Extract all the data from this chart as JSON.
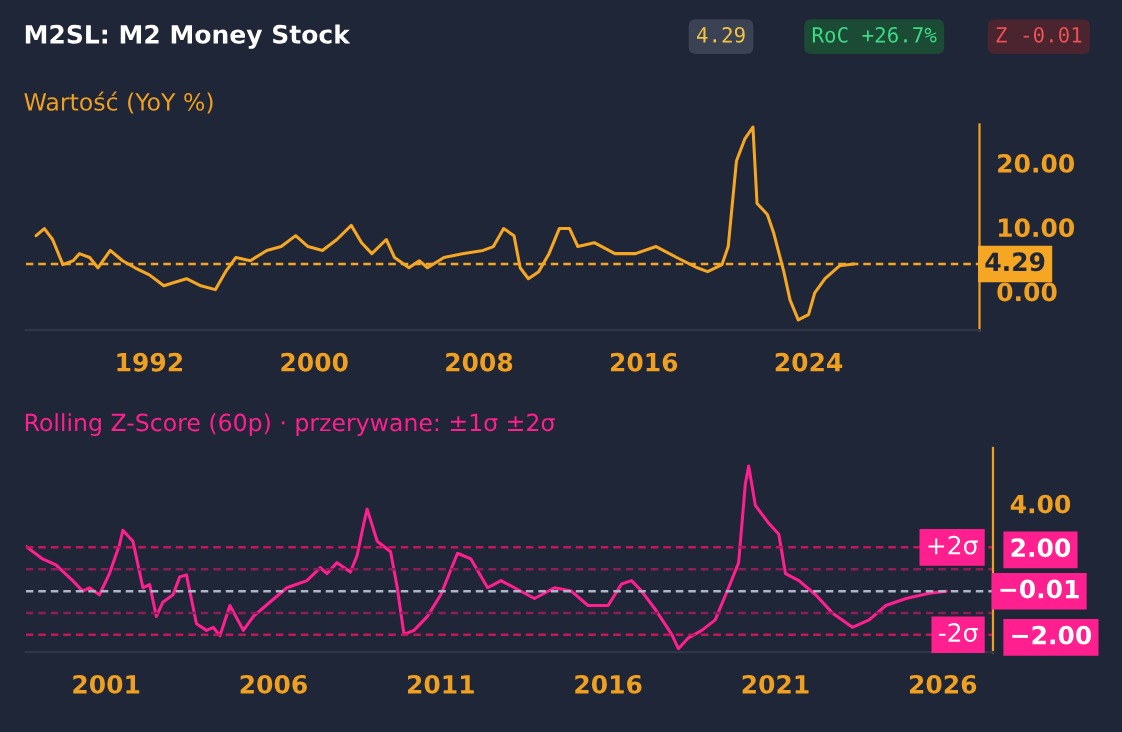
{
  "chart_data": [
    {
      "type": "line",
      "title": "M2SL: M2 Money Stock",
      "subtitle": "Wartość (YoY %)",
      "annotations": [
        "4.29",
        "RoC +26.7%",
        "Z -0.01"
      ],
      "x": [
        1986.5,
        1986.9,
        1987.3,
        1987.8,
        1988.3,
        1988.6,
        1989.1,
        1989.5,
        1990.1,
        1990.7,
        1991.3,
        1992.0,
        1992.7,
        1993.2,
        1993.8,
        1994.5,
        1995.2,
        1995.7,
        1996.2,
        1996.9,
        1997.7,
        1998.4,
        1999.1,
        1999.7,
        2000.4,
        2001.1,
        2001.8,
        2002.3,
        2002.8,
        2003.5,
        2003.9,
        2004.6,
        2005.1,
        2005.5,
        2006.3,
        2007.2,
        2008.2,
        2008.7,
        2009.2,
        2009.7,
        2010.0,
        2010.4,
        2010.9,
        2011.4,
        2011.9,
        2012.4,
        2012.8,
        2013.6,
        2014.6,
        2015.6,
        2016.6,
        2017.6,
        2018.6,
        2019.1,
        2019.8,
        2020.1,
        2020.5,
        2020.9,
        2021.3,
        2021.5,
        2022.0,
        2022.3,
        2022.8,
        2023.1,
        2023.5,
        2024.0,
        2024.3,
        2024.8,
        2025.5,
        2026.2
      ],
      "series": [
        {
          "color": "#f5a623",
          "values": [
            8.7,
            9.8,
            8.1,
            4.2,
            4.8,
            5.9,
            5.3,
            3.7,
            6.4,
            4.8,
            3.7,
            2.6,
            0.9,
            1.4,
            2.0,
            0.9,
            0.3,
            3.1,
            5.3,
            4.8,
            6.4,
            7.0,
            8.7,
            7.0,
            6.4,
            8.1,
            10.3,
            7.6,
            5.9,
            8.1,
            5.3,
            3.7,
            4.8,
            3.7,
            5.3,
            5.9,
            6.4,
            7.0,
            9.8,
            8.7,
            3.7,
            2.0,
            3.1,
            5.9,
            9.8,
            9.8,
            7.0,
            7.6,
            5.9,
            5.9,
            7.0,
            5.3,
            3.7,
            3.1,
            4.2,
            7.0,
            20.3,
            23.7,
            25.6,
            13.7,
            12.0,
            9.2,
            3.1,
            -1.3,
            -4.4,
            -3.6,
            -0.2,
            2.0,
            4.0,
            4.29
          ]
        }
      ],
      "xlim": [
        1986,
        2032.3
      ],
      "xticks": [
        1992,
        2000,
        2008,
        2016,
        2024
      ],
      "ylim": [
        -6,
        26
      ],
      "yticks": [
        {
          "value": 0,
          "label": "0.00"
        },
        {
          "value": 10,
          "label": "10.00"
        },
        {
          "value": 20,
          "label": "20.00"
        }
      ],
      "ref_lines": [
        {
          "axis": "y",
          "value": 4.29,
          "label": "4.29",
          "color": "#f5a623",
          "line_style": "dashed"
        }
      ],
      "grid": false,
      "legend": false
    },
    {
      "type": "line",
      "title": "Rolling Z-Score (60p) · przerywane: ±1σ ±2σ",
      "x": [
        1998.6,
        1999.1,
        1999.5,
        2000.0,
        2000.3,
        2000.5,
        2000.8,
        2001.1,
        2001.4,
        2001.5,
        2001.8,
        2002.1,
        2002.3,
        2002.5,
        2002.7,
        2003.0,
        2003.2,
        2003.4,
        2003.7,
        2004.0,
        2004.2,
        2004.4,
        2004.7,
        2005.1,
        2005.4,
        2005.9,
        2006.4,
        2007.0,
        2007.4,
        2007.6,
        2007.9,
        2008.3,
        2008.5,
        2008.7,
        2008.8,
        2009.1,
        2009.5,
        2009.7,
        2009.9,
        2010.2,
        2010.6,
        2011.0,
        2011.5,
        2011.9,
        2012.4,
        2012.8,
        2013.2,
        2013.8,
        2014.4,
        2014.9,
        2015.4,
        2016.0,
        2016.4,
        2016.7,
        2017.0,
        2017.4,
        2017.9,
        2018.1,
        2018.4,
        2018.8,
        2019.2,
        2019.6,
        2019.9,
        2020.1,
        2020.2,
        2020.4,
        2020.8,
        2021.1,
        2021.3,
        2021.7,
        2022.2,
        2022.7,
        2023.3,
        2023.8,
        2024.3,
        2024.9,
        2025.6,
        2026.1
      ],
      "series": [
        {
          "color": "#ff1f8f",
          "values": [
            2.05,
            1.47,
            1.2,
            0.48,
            0,
            0.15,
            -0.17,
            0.8,
            2.12,
            2.78,
            2.28,
            0.15,
            0.3,
            -1.16,
            -0.5,
            -0.17,
            0.65,
            0.74,
            -1.5,
            -1.8,
            -1.66,
            -2.05,
            -0.66,
            -1.8,
            -1.16,
            -0.5,
            0.15,
            0.48,
            1.07,
            0.8,
            1.3,
            0.87,
            1.63,
            3.1,
            3.75,
            2.28,
            1.8,
            0.15,
            -1.98,
            -1.8,
            -1.16,
            -0.17,
            1.73,
            1.47,
            0.15,
            0.48,
            0.15,
            -0.34,
            0.15,
            0,
            -0.66,
            -0.66,
            0.32,
            0.48,
            0,
            -0.82,
            -1.98,
            -2.64,
            -2.14,
            -1.8,
            -1.32,
            0.15,
            1.3,
            4.9,
            5.72,
            3.92,
            3.1,
            2.6,
            0.8,
            0.48,
            -0.17,
            -1.0,
            -1.66,
            -1.32,
            -0.66,
            -0.34,
            -0.1,
            -0.01
          ]
        }
      ],
      "xlim": [
        1998.6,
        2027.5
      ],
      "xticks": [
        2001,
        2006,
        2011,
        2016,
        2021,
        2026
      ],
      "ylim": [
        -2.8,
        6.55
      ],
      "yticks": [
        {
          "value": 4,
          "label": "4.00"
        },
        {
          "value": 2,
          "label": "2.00"
        },
        {
          "value": -2,
          "label": "−2.00"
        }
      ],
      "ref_lines": [
        {
          "axis": "y",
          "value": 2,
          "label": "+2σ",
          "color": "#c2185b",
          "line_style": "dashed"
        },
        {
          "axis": "y",
          "value": 1,
          "label": null,
          "color": "#8e1d5a",
          "line_style": "dashed"
        },
        {
          "axis": "y",
          "value": -0.01,
          "label": "−0.01",
          "color": "#b0b4c8",
          "line_style": "dashed"
        },
        {
          "axis": "y",
          "value": -1,
          "label": null,
          "color": "#8e1d5a",
          "line_style": "dashed"
        },
        {
          "axis": "y",
          "value": -2,
          "label": "-2σ",
          "color": "#c2185b",
          "line_style": "dashed"
        }
      ],
      "grid": false,
      "legend": false
    }
  ]
}
